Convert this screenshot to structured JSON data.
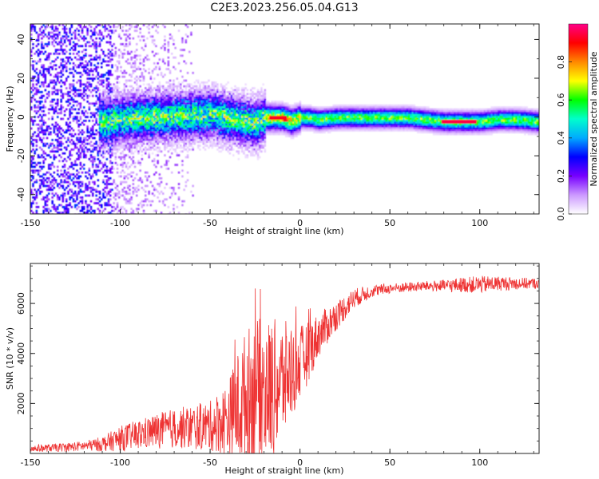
{
  "figure": {
    "title": "C2E3.2023.256.05.04.G13"
  },
  "chart_data": [
    {
      "type": "heatmap",
      "title": "",
      "xlabel": "Height of straight line (km)",
      "ylabel": "Frequency (Hz)",
      "xlim": [
        -150,
        133
      ],
      "ylim": [
        -50,
        48
      ],
      "x_ticks": [
        -150,
        -100,
        -50,
        0,
        50,
        100
      ],
      "y_ticks": [
        -40,
        -20,
        0,
        20,
        40
      ],
      "colorbar": {
        "label": "Normalized spectral amplitude",
        "range": [
          0,
          1
        ],
        "ticks": [
          "0.0",
          "0.2",
          "0.4",
          "0.6",
          "0.8"
        ],
        "colors": [
          "#ffffff",
          "#cc99ff",
          "#7700ff",
          "#0000ff",
          "#00aaff",
          "#00ffcc",
          "#00ff00",
          "#ffff00",
          "#ff8800",
          "#ff0000",
          "#ff0088"
        ]
      },
      "ridge_line": {
        "x": [
          -110,
          -100,
          -90,
          -80,
          -70,
          -60,
          -50,
          -40,
          -30,
          -25,
          -20,
          -15,
          -10,
          -5,
          0,
          5,
          10,
          20,
          30,
          40,
          50,
          60,
          70,
          80,
          90,
          100,
          110,
          120,
          133
        ],
        "y": [
          -2,
          -1,
          0,
          0,
          1,
          1,
          2,
          0,
          -2,
          -3,
          0,
          0,
          0,
          -2,
          0,
          0,
          -1,
          0,
          0,
          0,
          0,
          0,
          -1,
          -2,
          -2,
          -2,
          -1,
          -1,
          -2
        ]
      }
    },
    {
      "type": "line",
      "title": "",
      "xlabel": "Height of straight line (km)",
      "ylabel": "SNR (10 * v/v)",
      "xlim": [
        -150,
        133
      ],
      "ylim": [
        0,
        7600
      ],
      "x_ticks": [
        -150,
        -100,
        -50,
        0,
        50,
        100
      ],
      "y_ticks": [
        2000,
        4000,
        6000
      ],
      "color": "#ee3333",
      "envelope": {
        "x": [
          -150,
          -140,
          -130,
          -120,
          -110,
          -100,
          -90,
          -80,
          -70,
          -60,
          -50,
          -40,
          -35,
          -30,
          -25,
          -20,
          -15,
          -10,
          -5,
          0,
          5,
          10,
          20,
          30,
          40,
          50,
          60,
          70,
          80,
          90,
          100,
          110,
          120,
          133
        ],
        "mean": [
          200,
          220,
          250,
          300,
          380,
          600,
          750,
          900,
          1000,
          1050,
          1100,
          1400,
          1800,
          2200,
          2400,
          2500,
          2600,
          2900,
          3300,
          3600,
          4100,
          4700,
          5500,
          6200,
          6500,
          6600,
          6650,
          6700,
          6700,
          6750,
          6750,
          6800,
          6800,
          6800
        ],
        "amp": [
          150,
          150,
          180,
          200,
          300,
          500,
          600,
          700,
          800,
          900,
          1000,
          1500,
          2200,
          2800,
          3000,
          2900,
          2800,
          2400,
          2000,
          1500,
          1200,
          900,
          600,
          400,
          250,
          200,
          200,
          200,
          250,
          300,
          350,
          300,
          250,
          200
        ]
      }
    }
  ]
}
